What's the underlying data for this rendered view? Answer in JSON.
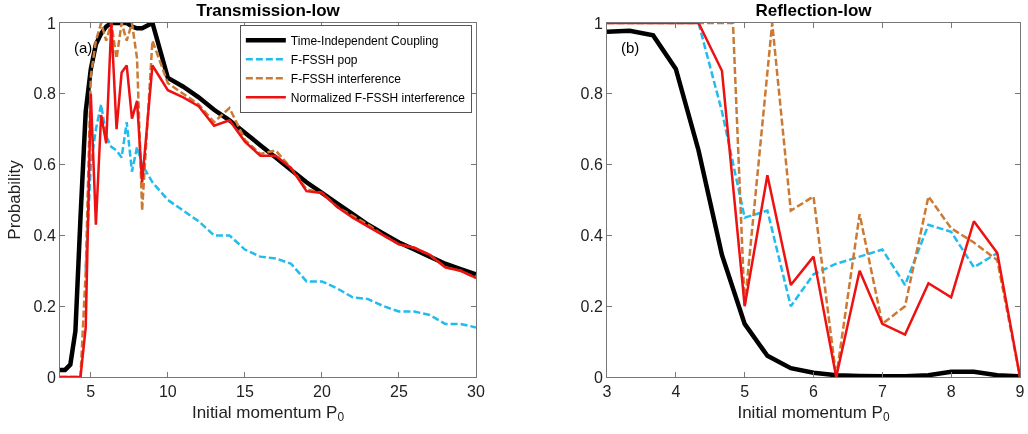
{
  "chart_data": [
    {
      "type": "line",
      "title": "Transmission-low",
      "xlabel": "Initial momentum P$_{0}$",
      "ylabel": "Probability",
      "annotations": [
        "(a)"
      ],
      "xlim": [
        3,
        30
      ],
      "xticks": [
        5,
        10,
        15,
        20,
        25,
        30
      ],
      "ylim": [
        0,
        1
      ],
      "yticks": [
        0,
        0.2,
        0.4,
        0.6,
        0.8,
        1
      ],
      "grid": false,
      "legend": "top right",
      "marker": "none",
      "x": [
        3,
        3.33,
        3.67,
        4,
        4.33,
        4.67,
        5,
        5.33,
        5.67,
        6,
        6.33,
        6.67,
        7,
        7.33,
        7.67,
        8,
        8.33,
        9,
        10,
        11,
        12,
        13,
        14,
        15,
        16,
        17,
        18,
        19,
        20,
        21,
        22,
        23,
        24,
        25,
        26,
        27,
        28,
        29,
        30
      ],
      "series": [
        {
          "name": "Time-Independent Coupling",
          "color": "#000000",
          "line_style": "solid",
          "values": [
            0.02,
            0.02,
            0.035,
            0.13,
            0.45,
            0.75,
            0.87,
            0.94,
            0.97,
            0.99,
            1,
            1,
            1,
            1,
            0.99,
            0.985,
            0.985,
            1,
            0.845,
            0.82,
            0.79,
            0.755,
            0.725,
            0.69,
            0.655,
            0.62,
            0.585,
            0.55,
            0.52,
            0.49,
            0.46,
            0.43,
            0.405,
            0.38,
            0.36,
            0.34,
            0.32,
            0.305,
            0.29
          ]
        },
        {
          "name": "F-FSSH pop",
          "color": "#22bbee",
          "line_style": "dashed",
          "values": [
            null,
            null,
            null,
            null,
            null,
            0.3,
            0.6,
            0.7,
            0.77,
            0.68,
            0.65,
            0.64,
            0.62,
            0.72,
            0.58,
            0.65,
            0.6,
            0.55,
            0.5,
            0.47,
            0.44,
            0.4,
            0.4,
            0.36,
            0.34,
            0.335,
            0.32,
            0.27,
            0.27,
            0.25,
            0.225,
            0.22,
            0.2,
            0.185,
            0.185,
            0.175,
            0.15,
            0.15,
            0.14
          ]
        },
        {
          "name": "F-FSSH interference",
          "color": "#cc7a33",
          "line_style": "dashed",
          "values": [
            0,
            0,
            0,
            0,
            0,
            0.3,
            0.85,
            0.95,
            1,
            0.95,
            1,
            0.9,
            1,
            0.95,
            1,
            0.9,
            0.47,
            0.95,
            0.83,
            0.8,
            0.77,
            0.72,
            0.76,
            0.67,
            0.63,
            0.64,
            0.59,
            0.53,
            0.52,
            0.48,
            0.455,
            0.43,
            0.4,
            0.375,
            0.365,
            0.345,
            0.31,
            0.3,
            0.28
          ]
        },
        {
          "name": "Normalized F-FSSH interference",
          "color": "#ee1111",
          "line_style": "solid",
          "values": [
            0,
            0,
            0,
            0,
            0,
            0.14,
            0.8,
            0.43,
            0.74,
            0.66,
            1,
            0.7,
            0.86,
            0.88,
            0.73,
            0.78,
            0.55,
            0.88,
            0.81,
            0.79,
            0.765,
            0.71,
            0.725,
            0.665,
            0.625,
            0.625,
            0.59,
            0.525,
            0.52,
            0.48,
            0.45,
            0.425,
            0.4,
            0.375,
            0.365,
            0.345,
            0.31,
            0.3,
            0.28
          ]
        }
      ]
    },
    {
      "type": "line",
      "title": "Reflection-low",
      "xlabel": "Initial momentum P$_{0}$",
      "annotations": [
        "(b)"
      ],
      "xlim": [
        3,
        9
      ],
      "xticks": [
        3,
        4,
        5,
        6,
        7,
        8,
        9
      ],
      "ylim": [
        0,
        1
      ],
      "yticks": [
        0,
        0.2,
        0.4,
        0.6,
        0.8,
        1
      ],
      "grid": false,
      "legend": false,
      "marker": "none",
      "x": [
        3,
        3.33,
        3.67,
        4,
        4.33,
        4.67,
        5,
        5.33,
        5.67,
        6,
        6.33,
        6.67,
        7,
        7.33,
        7.67,
        8,
        8.33,
        8.67,
        9
      ],
      "series": [
        {
          "color": "#000000",
          "line_style": "solid",
          "values": [
            0.975,
            0.978,
            0.965,
            0.87,
            0.64,
            0.345,
            0.15,
            0.06,
            0.025,
            0.012,
            0.005,
            0.003,
            0.002,
            0.002,
            0.005,
            0.015,
            0.015,
            0.005,
            0.002
          ]
        },
        {
          "color": "#22bbee",
          "line_style": "dashed",
          "x": [
            4.33,
            4.67,
            5,
            5.33,
            5.67,
            6,
            6.33,
            6.67,
            7,
            7.33,
            7.67,
            8,
            8.33,
            8.67
          ],
          "values": [
            1,
            0.75,
            0.45,
            0.47,
            0.2,
            0.29,
            0.32,
            0.34,
            0.36,
            0.26,
            0.43,
            0.41,
            0.31,
            0.35
          ]
        },
        {
          "color": "#cc7a33",
          "line_style": "dashed",
          "x": [
            3,
            3.33,
            3.67,
            4,
            4.33,
            4.83,
            5,
            5.4,
            5.67,
            6,
            6.33,
            6.67,
            7,
            7.33,
            7.67,
            8,
            8.33,
            8.67,
            9
          ],
          "values": [
            1,
            1,
            1,
            1,
            1,
            1,
            0.2,
            1,
            0.47,
            0.51,
            0,
            0.46,
            0.15,
            0.2,
            0.51,
            0.42,
            0.38,
            0.33,
            0
          ]
        },
        {
          "color": "#ee1111",
          "line_style": "solid",
          "values": [
            1,
            1,
            1,
            1,
            1,
            0.865,
            0.2,
            0.57,
            0.26,
            0.34,
            0,
            0.3,
            0.15,
            0.12,
            0.265,
            0.225,
            0.44,
            0.35,
            0
          ]
        }
      ]
    }
  ]
}
